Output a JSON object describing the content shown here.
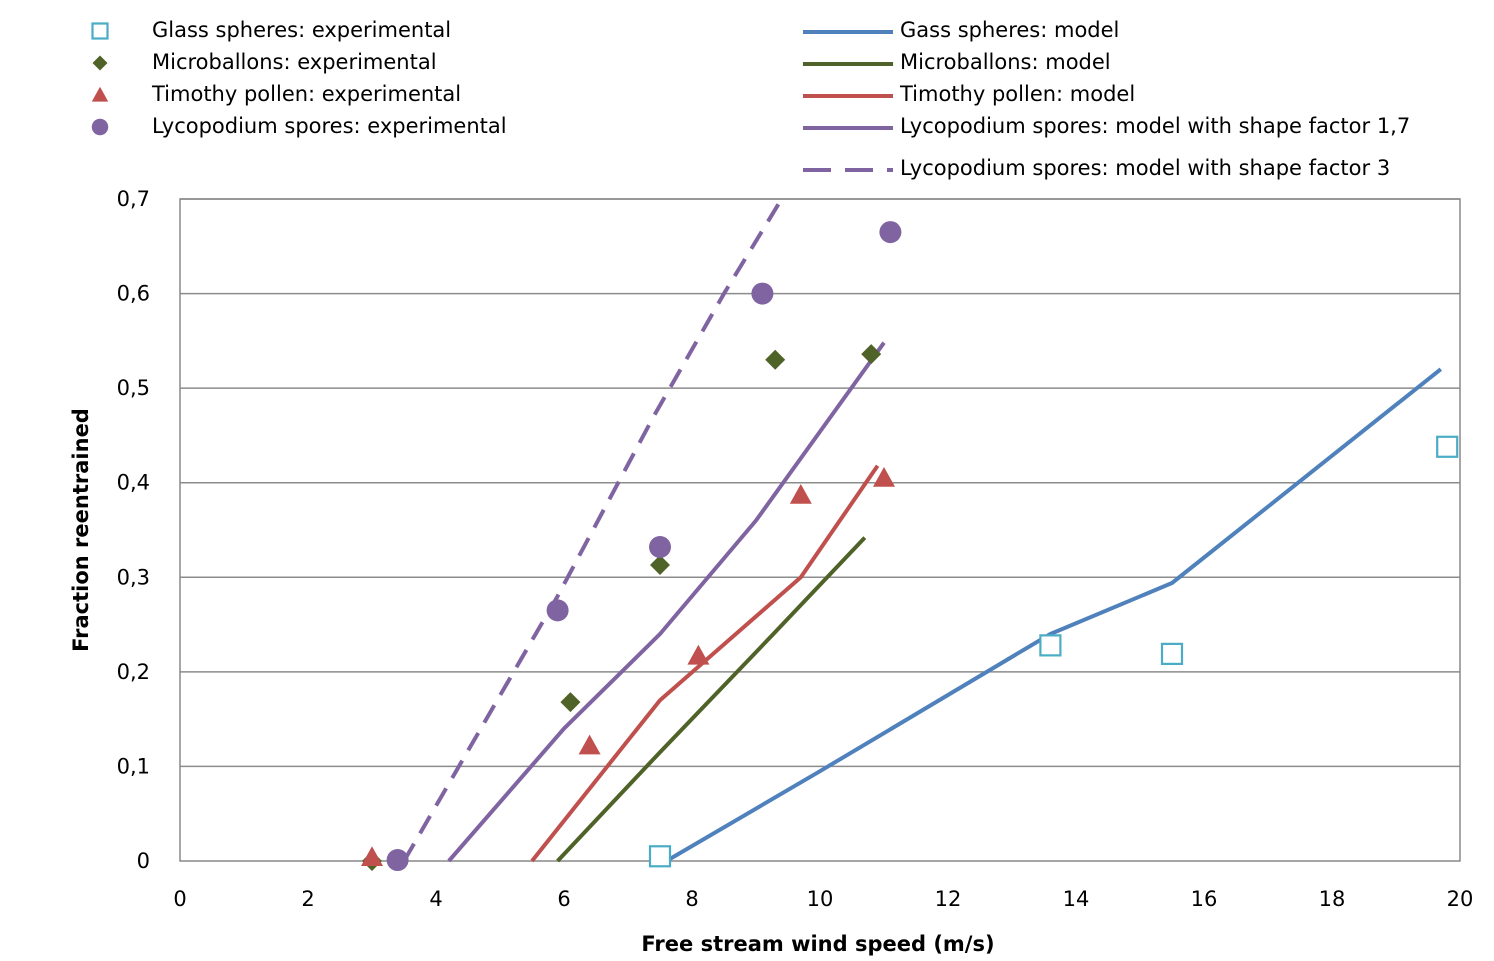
{
  "chart_data": {
    "type": "scatter",
    "title": "",
    "xlabel": "Free stream wind speed (m/s)",
    "ylabel": "Fraction reentrained",
    "xlim": [
      0,
      20
    ],
    "ylim": [
      0,
      0.7
    ],
    "x_ticks": [
      "0",
      "2",
      "4",
      "6",
      "8",
      "10",
      "12",
      "14",
      "16",
      "18",
      "20"
    ],
    "y_ticks": [
      "0",
      "0,1",
      "0,2",
      "0,3",
      "0,4",
      "0,5",
      "0,6",
      "0,7"
    ],
    "grid": "horizontal",
    "legend_position": "top",
    "series": [
      {
        "name": "Glass spheres: experimental",
        "kind": "marker",
        "marker": "square-open",
        "color": "#4bacc6",
        "points": [
          [
            7.5,
            0.005
          ],
          [
            13.6,
            0.228
          ],
          [
            15.5,
            0.219
          ],
          [
            19.8,
            0.438
          ]
        ]
      },
      {
        "name": "Microballons: experimental",
        "kind": "marker",
        "marker": "diamond",
        "color": "#4f6228",
        "points": [
          [
            3.0,
            0.0
          ],
          [
            6.1,
            0.168
          ],
          [
            7.5,
            0.313
          ],
          [
            9.3,
            0.53
          ],
          [
            10.8,
            0.536
          ]
        ]
      },
      {
        "name": "Timothy pollen: experimental",
        "kind": "marker",
        "marker": "triangle",
        "color": "#c0504d",
        "points": [
          [
            3.0,
            0.004
          ],
          [
            6.4,
            0.122
          ],
          [
            8.1,
            0.217
          ],
          [
            9.7,
            0.387
          ],
          [
            11.0,
            0.405
          ]
        ]
      },
      {
        "name": "Lycopodium spores: experimental",
        "kind": "marker",
        "marker": "circle",
        "color": "#8064a2",
        "points": [
          [
            3.4,
            0.001
          ],
          [
            5.9,
            0.265
          ],
          [
            7.5,
            0.332
          ],
          [
            9.1,
            0.6
          ],
          [
            11.1,
            0.665
          ]
        ]
      },
      {
        "name": "Gass spheres: model",
        "kind": "line",
        "dash": "solid",
        "color": "#4f81bd",
        "points": [
          [
            7.6,
            0.0
          ],
          [
            10.0,
            0.095
          ],
          [
            13.6,
            0.24
          ],
          [
            15.5,
            0.294
          ],
          [
            19.7,
            0.52
          ]
        ]
      },
      {
        "name": "Microballons: model",
        "kind": "line",
        "dash": "solid",
        "color": "#4f6228",
        "points": [
          [
            5.9,
            0.0
          ],
          [
            7.5,
            0.115
          ],
          [
            9.2,
            0.235
          ],
          [
            10.7,
            0.342
          ]
        ]
      },
      {
        "name": "Timothy pollen: model",
        "kind": "line",
        "dash": "solid",
        "color": "#c0504d",
        "points": [
          [
            5.5,
            0.0
          ],
          [
            7.5,
            0.17
          ],
          [
            9.7,
            0.3
          ],
          [
            10.9,
            0.418
          ]
        ]
      },
      {
        "name": "Lycopodium spores: model with shape factor 1,7",
        "kind": "line",
        "dash": "solid",
        "color": "#8064a2",
        "points": [
          [
            4.2,
            0.0
          ],
          [
            6.0,
            0.14
          ],
          [
            7.5,
            0.24
          ],
          [
            9.0,
            0.36
          ],
          [
            11.0,
            0.548
          ]
        ]
      },
      {
        "name": "Lycopodium spores: model with shape factor 3",
        "kind": "line",
        "dash": "dashed",
        "color": "#8064a2",
        "points": [
          [
            3.5,
            0.0
          ],
          [
            5.9,
            0.28
          ],
          [
            7.4,
            0.47
          ],
          [
            8.5,
            0.6
          ],
          [
            9.4,
            0.7
          ]
        ]
      }
    ]
  }
}
